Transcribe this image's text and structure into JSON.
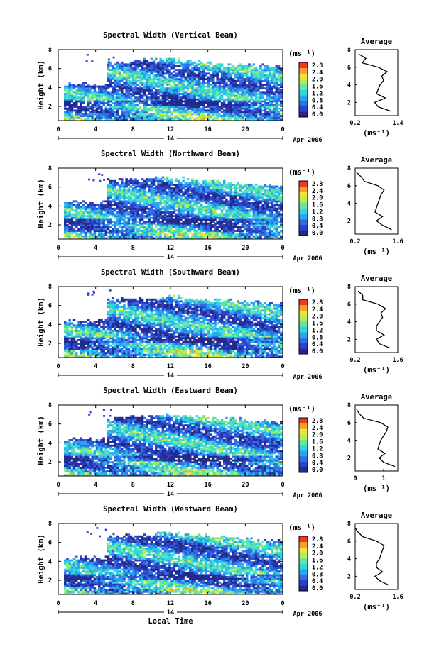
{
  "x_axis": {
    "ticks": [
      "0",
      "4",
      "8",
      "12",
      "16",
      "20",
      "0"
    ],
    "day_label": "14",
    "date_label": "Apr 2006",
    "xlabel": "Local Time"
  },
  "y_axis": {
    "ylabel": "Height (km)",
    "ticks": [
      "2",
      "4",
      "6",
      "8"
    ]
  },
  "colorbar": {
    "unit": "(ms⁻¹)",
    "ticks": [
      "0.0",
      "0.4",
      "0.8",
      "1.2",
      "1.6",
      "2.0",
      "2.4",
      "2.8"
    ]
  },
  "profile": {
    "title": "Average",
    "xlabel": "(ms⁻¹)"
  },
  "colors": {
    "scale": [
      "#222b8c",
      "#2e41c9",
      "#2f6ee6",
      "#29a5f0",
      "#2fd6e0",
      "#5fe6a8",
      "#b2ee4f",
      "#f0e040",
      "#f7a02a",
      "#ee3a1e"
    ]
  },
  "chart_data": [
    {
      "type": "heatmap",
      "title": "Spectral Width (Vertical Beam)",
      "xlabel": "Local Time",
      "ylabel": "Height (km)",
      "xlim": [
        0,
        24
      ],
      "ylim": [
        0.5,
        8
      ],
      "colorbar_ticks": [
        0.0,
        0.4,
        0.8,
        1.2,
        1.6,
        2.0,
        2.4,
        2.8
      ],
      "colorbar_unit": "(ms-1)",
      "profile": {
        "title": "Average",
        "xlabel": "(ms-1)",
        "xlim": [
          0.2,
          1.4
        ],
        "xticks": [
          "0.2",
          "1.4"
        ],
        "height": [
          1.0,
          1.5,
          2.0,
          2.5,
          3.0,
          3.5,
          4.0,
          4.5,
          5.0,
          5.5,
          6.0,
          6.5,
          7.0,
          7.5
        ],
        "values": [
          1.2,
          0.85,
          0.75,
          1.05,
          0.8,
          0.85,
          0.9,
          1.0,
          0.95,
          1.1,
          0.85,
          0.4,
          0.5,
          0.3
        ]
      }
    },
    {
      "type": "heatmap",
      "title": "Spectral Width (Northward Beam)",
      "xlabel": "Local Time",
      "ylabel": "Height (km)",
      "xlim": [
        0,
        24
      ],
      "ylim": [
        0.5,
        8
      ],
      "colorbar_ticks": [
        0.0,
        0.4,
        0.8,
        1.2,
        1.6,
        2.0,
        2.4,
        2.8
      ],
      "colorbar_unit": "(ms-1)",
      "profile": {
        "title": "Average",
        "xlabel": "(ms-1)",
        "xlim": [
          0.2,
          1.6
        ],
        "xticks": [
          "0.2",
          "1.6"
        ],
        "height": [
          1.0,
          1.5,
          2.0,
          2.5,
          3.0,
          3.5,
          4.0,
          4.5,
          5.0,
          5.5,
          6.0,
          6.5,
          7.0,
          7.5
        ],
        "values": [
          1.4,
          1.1,
          0.9,
          1.1,
          0.85,
          0.9,
          0.95,
          1.0,
          1.05,
          1.15,
          0.95,
          0.5,
          0.4,
          0.25
        ]
      }
    },
    {
      "type": "heatmap",
      "title": "Spectral Width (Southward Beam)",
      "xlabel": "Local Time",
      "ylabel": "Height (km)",
      "xlim": [
        0,
        24
      ],
      "ylim": [
        0.5,
        8
      ],
      "colorbar_ticks": [
        0.0,
        0.4,
        0.8,
        1.2,
        1.6,
        2.0,
        2.4,
        2.8
      ],
      "colorbar_unit": "(ms-1)",
      "profile": {
        "title": "Average",
        "xlabel": "(ms-1)",
        "xlim": [
          0.2,
          1.6
        ],
        "xticks": [
          "0.2",
          "1.6"
        ],
        "height": [
          1.0,
          1.5,
          2.0,
          2.5,
          3.0,
          3.5,
          4.0,
          4.5,
          5.0,
          5.5,
          6.0,
          6.5,
          7.0,
          7.5
        ],
        "values": [
          1.35,
          1.0,
          0.9,
          1.15,
          0.9,
          0.9,
          1.0,
          1.1,
          1.05,
          1.2,
          0.95,
          0.45,
          0.45,
          0.3
        ]
      }
    },
    {
      "type": "heatmap",
      "title": "Spectral Width (Eastward Beam)",
      "xlabel": "Local Time",
      "ylabel": "Height (km)",
      "xlim": [
        0,
        24
      ],
      "ylim": [
        0.5,
        8
      ],
      "colorbar_ticks": [
        0.0,
        0.4,
        0.8,
        1.2,
        1.6,
        2.0,
        2.4,
        2.8
      ],
      "colorbar_unit": "(ms-1)",
      "profile": {
        "title": "Average",
        "xlabel": "(ms-1)",
        "xlim": [
          0,
          1.5
        ],
        "xticks": [
          "0",
          "1"
        ],
        "height": [
          1.0,
          1.5,
          2.0,
          2.5,
          3.0,
          3.5,
          4.0,
          4.5,
          5.0,
          5.5,
          6.0,
          6.5,
          7.0,
          7.5
        ],
        "values": [
          1.4,
          1.0,
          0.85,
          1.05,
          0.8,
          0.85,
          0.9,
          1.0,
          1.1,
          1.15,
          0.9,
          0.3,
          0.15,
          0.05
        ]
      }
    },
    {
      "type": "heatmap",
      "title": "Spectral Width (Westward Beam)",
      "xlabel": "Local Time",
      "ylabel": "Height (km)",
      "xlim": [
        0,
        24
      ],
      "ylim": [
        0.5,
        8
      ],
      "colorbar_ticks": [
        0.0,
        0.4,
        0.8,
        1.2,
        1.6,
        2.0,
        2.4,
        2.8
      ],
      "colorbar_unit": "(ms-1)",
      "profile": {
        "title": "Average",
        "xlabel": "(ms-1)",
        "xlim": [
          0.2,
          1.6
        ],
        "xticks": [
          "0.2",
          "1.6"
        ],
        "height": [
          1.0,
          1.5,
          2.0,
          2.5,
          3.0,
          3.5,
          4.0,
          4.5,
          5.0,
          5.5,
          6.0,
          6.5,
          7.0,
          7.5
        ],
        "values": [
          1.3,
          1.0,
          0.85,
          1.1,
          0.9,
          0.9,
          1.0,
          1.05,
          1.1,
          1.15,
          0.9,
          0.45,
          0.3,
          0.2
        ]
      }
    }
  ]
}
